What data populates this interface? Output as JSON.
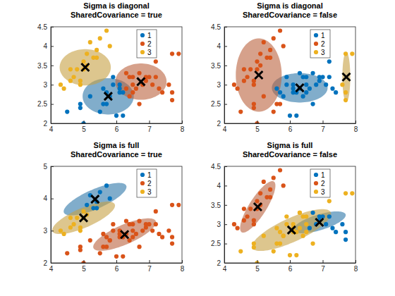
{
  "chart_data": [
    {
      "type": "scatter",
      "title": [
        "Sigma is diagonal",
        "SharedCovariance = true"
      ],
      "xlim": [
        4,
        8
      ],
      "ylim": [
        2,
        4.5
      ],
      "xticks": [
        4,
        5,
        6,
        7,
        8
      ],
      "yticks": [
        2,
        2.5,
        3,
        3.5,
        4,
        4.5
      ],
      "legend": "northeast",
      "series": [
        {
          "name": "1",
          "color": "#0072BD",
          "x": [
            4.5,
            5.5,
            5.7,
            4.9,
            5.2,
            5.0,
            5.9,
            6.0,
            6.1,
            5.6,
            5.8,
            6.2,
            5.6,
            5.9,
            6.1,
            4.9,
            5.7,
            6.2,
            6.1
          ],
          "values": [
            2.3,
            2.3,
            2.8,
            2.4,
            2.7,
            2.0,
            3.0,
            2.2,
            2.9,
            2.9,
            2.7,
            2.2,
            2.5,
            3.2,
            2.8,
            2.5,
            2.5,
            2.8,
            3.0
          ],
          "mean": [
            5.75,
            2.7
          ],
          "ellipse_axes": [
            [
              0.78,
              0
            ],
            [
              0,
              0.47
            ]
          ]
        },
        {
          "name": "2",
          "color": "#D95319",
          "x": [
            7.0,
            6.4,
            6.9,
            6.5,
            6.3,
            6.6,
            7.1,
            6.3,
            6.5,
            7.6,
            7.3,
            6.7,
            7.2,
            6.5,
            6.4,
            6.8,
            7.7,
            7.7,
            7.9,
            6.9,
            7.7,
            6.7,
            7.2,
            7.4
          ],
          "values": [
            3.2,
            3.2,
            3.1,
            2.8,
            3.3,
            2.9,
            3.0,
            2.9,
            3.0,
            3.0,
            2.9,
            2.5,
            3.6,
            3.2,
            2.7,
            3.0,
            3.8,
            2.6,
            3.8,
            3.2,
            2.8,
            3.3,
            3.2,
            2.8
          ],
          "mean": [
            6.75,
            3.08
          ],
          "ellipse_axes": [
            [
              0.78,
              0
            ],
            [
              0,
              0.47
            ]
          ]
        },
        {
          "name": "3",
          "color": "#EDB120",
          "x": [
            5.1,
            4.9,
            4.7,
            4.6,
            5.0,
            5.4,
            4.6,
            5.0,
            4.4,
            4.9,
            5.4,
            4.8,
            4.3,
            5.8,
            5.7,
            5.2,
            5.5,
            5.1,
            5.3
          ],
          "values": [
            3.5,
            3.0,
            3.2,
            3.1,
            3.6,
            3.9,
            3.4,
            3.4,
            2.9,
            3.1,
            3.7,
            3.4,
            3.0,
            4.0,
            4.4,
            4.1,
            4.2,
            3.8,
            3.7
          ],
          "mean": [
            5.05,
            3.45
          ],
          "ellipse_axes": [
            [
              0.78,
              0
            ],
            [
              0,
              0.47
            ]
          ]
        }
      ]
    },
    {
      "type": "scatter",
      "title": [
        "Sigma is diagonal",
        "SharedCovariance = false"
      ],
      "xlim": [
        4,
        8
      ],
      "ylim": [
        2,
        4.5
      ],
      "xticks": [
        4,
        5,
        6,
        7,
        8
      ],
      "yticks": [
        2,
        2.5,
        3,
        3.5,
        4,
        4.5
      ],
      "legend": "northeast",
      "series": [
        {
          "name": "1",
          "color": "#0072BD",
          "x": [
            7.0,
            6.4,
            6.9,
            6.5,
            5.7,
            6.3,
            6.6,
            5.9,
            6.0,
            6.1,
            5.6,
            5.8,
            6.2,
            5.9,
            6.1,
            7.1,
            6.3,
            6.5,
            7.3,
            6.7,
            7.2,
            6.5,
            6.4,
            6.8,
            6.9,
            6.7,
            7.2,
            6.2,
            7.4,
            6.1
          ],
          "values": [
            3.2,
            3.2,
            3.1,
            2.8,
            2.8,
            3.3,
            2.9,
            3.0,
            2.2,
            2.9,
            2.9,
            2.7,
            2.2,
            3.2,
            2.8,
            3.0,
            2.9,
            3.0,
            2.9,
            2.5,
            3.6,
            3.2,
            2.7,
            3.0,
            3.2,
            3.3,
            3.2,
            2.8,
            2.8,
            3.0
          ],
          "mean": [
            6.3,
            2.92
          ],
          "ellipse_axes": [
            [
              0.85,
              0
            ],
            [
              0,
              0.38
            ]
          ]
        },
        {
          "name": "2",
          "color": "#D95319",
          "x": [
            5.1,
            4.9,
            4.7,
            4.6,
            5.0,
            5.4,
            4.6,
            5.0,
            4.4,
            4.9,
            5.4,
            4.8,
            4.3,
            5.8,
            5.7,
            5.2,
            5.5,
            4.5,
            5.1,
            5.3,
            4.9,
            5.0,
            4.9,
            5.2,
            5.5,
            5.6,
            5.7
          ],
          "values": [
            3.5,
            3.0,
            3.2,
            3.1,
            3.6,
            3.9,
            3.4,
            3.4,
            2.9,
            3.1,
            3.7,
            3.4,
            3.0,
            4.0,
            4.4,
            4.1,
            4.2,
            2.3,
            3.8,
            3.7,
            2.4,
            2.0,
            2.5,
            2.7,
            2.3,
            2.5,
            2.5
          ],
          "mean": [
            5.05,
            3.25
          ],
          "ellipse_axes": [
            [
              0.7,
              0
            ],
            [
              0,
              0.95
            ]
          ]
        },
        {
          "name": "3",
          "color": "#EDB120",
          "x": [
            7.6,
            7.7,
            7.7,
            7.9,
            7.7
          ],
          "values": [
            3.0,
            3.8,
            2.6,
            3.8,
            2.8
          ],
          "mean": [
            7.72,
            3.2
          ],
          "ellipse_axes": [
            [
              0.12,
              0
            ],
            [
              0,
              0.65
            ]
          ]
        }
      ]
    },
    {
      "type": "scatter",
      "title": [
        "Sigma is full",
        "SharedCovariance = true"
      ],
      "xlim": [
        4,
        8
      ],
      "ylim": [
        2,
        5
      ],
      "xticks": [
        4,
        5,
        6,
        7,
        8
      ],
      "yticks": [
        2,
        3,
        4,
        5
      ],
      "legend": "northeast",
      "series": [
        {
          "name": "1",
          "color": "#0072BD",
          "x": [
            5.7,
            5.8,
            5.4,
            5.2,
            5.5,
            5.4,
            5.3,
            5.1
          ],
          "values": [
            4.4,
            4.0,
            3.9,
            4.1,
            4.2,
            3.7,
            3.7,
            3.8
          ],
          "mean": [
            5.35,
            3.98
          ],
          "ellipse_axes": [
            [
              0.95,
              0.42
            ],
            [
              -0.12,
              0.28
            ]
          ]
        },
        {
          "name": "2",
          "color": "#D95319",
          "x": [
            7.0,
            6.4,
            6.9,
            5.5,
            6.5,
            5.7,
            6.3,
            4.9,
            6.6,
            5.2,
            5.0,
            5.9,
            6.0,
            6.1,
            5.6,
            5.8,
            6.2,
            5.6,
            5.9,
            6.1,
            5.8,
            7.1,
            6.3,
            6.5,
            7.6,
            4.9,
            7.3,
            6.7,
            7.2,
            6.5,
            6.4,
            6.8,
            5.7,
            7.7,
            7.7,
            7.9,
            6.9,
            7.7,
            6.7,
            7.2,
            6.2,
            7.4,
            6.1,
            4.5
          ],
          "values": [
            3.2,
            3.2,
            3.1,
            2.3,
            2.8,
            2.8,
            3.3,
            2.4,
            2.9,
            2.7,
            2.0,
            3.0,
            2.2,
            2.9,
            2.9,
            2.7,
            2.2,
            2.5,
            3.2,
            2.8,
            2.7,
            3.0,
            2.9,
            3.0,
            3.0,
            2.5,
            2.9,
            2.5,
            3.6,
            3.2,
            2.7,
            3.0,
            2.5,
            3.8,
            2.6,
            3.8,
            3.2,
            2.8,
            3.3,
            3.2,
            2.8,
            2.8,
            3.0,
            2.3
          ],
          "mean": [
            6.25,
            2.88
          ],
          "ellipse_axes": [
            [
              0.95,
              0.42
            ],
            [
              -0.12,
              0.28
            ]
          ]
        },
        {
          "name": "3",
          "color": "#EDB120",
          "x": [
            5.1,
            4.9,
            4.7,
            4.6,
            5.0,
            4.6,
            5.0,
            4.4,
            4.9,
            4.8,
            4.3
          ],
          "values": [
            3.5,
            3.0,
            3.2,
            3.1,
            3.6,
            3.4,
            3.4,
            2.9,
            3.1,
            3.4,
            3.0
          ],
          "mean": [
            5.0,
            3.4
          ],
          "ellipse_axes": [
            [
              0.95,
              0.42
            ],
            [
              -0.12,
              0.28
            ]
          ]
        }
      ]
    },
    {
      "type": "scatter",
      "title": [
        "Sigma is full",
        "SharedCovariance = false"
      ],
      "xlim": [
        4,
        8
      ],
      "ylim": [
        2,
        4.5
      ],
      "xticks": [
        4,
        5,
        6,
        7,
        8
      ],
      "yticks": [
        2,
        2.5,
        3,
        3.5,
        4,
        4.5
      ],
      "legend": "northeast",
      "series": [
        {
          "name": "1",
          "color": "#0072BD",
          "x": [
            7.0,
            6.9,
            6.6,
            7.1,
            7.6,
            7.3,
            6.8,
            7.7,
            6.9,
            7.7,
            7.2,
            7.4,
            6.7
          ],
          "values": [
            3.2,
            3.1,
            2.9,
            3.0,
            3.0,
            2.9,
            3.0,
            2.6,
            3.2,
            2.8,
            3.2,
            2.8,
            3.3
          ],
          "mean": [
            6.9,
            3.05
          ],
          "ellipse_axes": [
            [
              0.8,
              0.2
            ],
            [
              -0.05,
              0.2
            ]
          ]
        },
        {
          "name": "2",
          "color": "#D95319",
          "x": [
            5.1,
            4.9,
            4.7,
            4.6,
            5.0,
            5.4,
            4.6,
            5.0,
            4.4,
            4.9,
            5.4,
            4.8,
            4.3,
            5.8,
            5.7,
            5.2,
            5.5,
            5.1,
            5.3
          ],
          "values": [
            3.5,
            3.0,
            3.2,
            3.1,
            3.6,
            3.9,
            3.4,
            3.4,
            2.9,
            3.1,
            3.7,
            3.4,
            3.0,
            4.0,
            4.4,
            4.1,
            4.2,
            3.8,
            3.7
          ],
          "mean": [
            5.02,
            3.45
          ],
          "ellipse_axes": [
            [
              0.5,
              0.65
            ],
            [
              -0.2,
              0.15
            ]
          ]
        },
        {
          "name": "3",
          "color": "#EDB120",
          "x": [
            6.4,
            5.5,
            6.5,
            5.7,
            6.3,
            4.9,
            5.2,
            5.0,
            5.9,
            6.0,
            6.1,
            5.6,
            5.8,
            6.2,
            5.6,
            5.9,
            6.1,
            6.3,
            5.8,
            6.3,
            6.5,
            4.9,
            6.7,
            7.2,
            6.5,
            6.4,
            5.7,
            7.7,
            7.9,
            6.2,
            6.1,
            4.5
          ],
          "values": [
            3.2,
            2.3,
            2.8,
            2.8,
            3.3,
            2.4,
            2.7,
            2.0,
            3.0,
            2.2,
            2.9,
            2.9,
            2.7,
            2.2,
            2.5,
            3.2,
            2.8,
            3.3,
            2.7,
            2.9,
            3.0,
            2.5,
            2.5,
            3.6,
            3.2,
            2.7,
            2.5,
            3.8,
            3.8,
            2.8,
            3.0,
            2.3
          ],
          "mean": [
            6.05,
            2.85
          ],
          "ellipse_axes": [
            [
              1.2,
              0.45
            ],
            [
              -0.1,
              0.3
            ]
          ]
        }
      ]
    }
  ]
}
